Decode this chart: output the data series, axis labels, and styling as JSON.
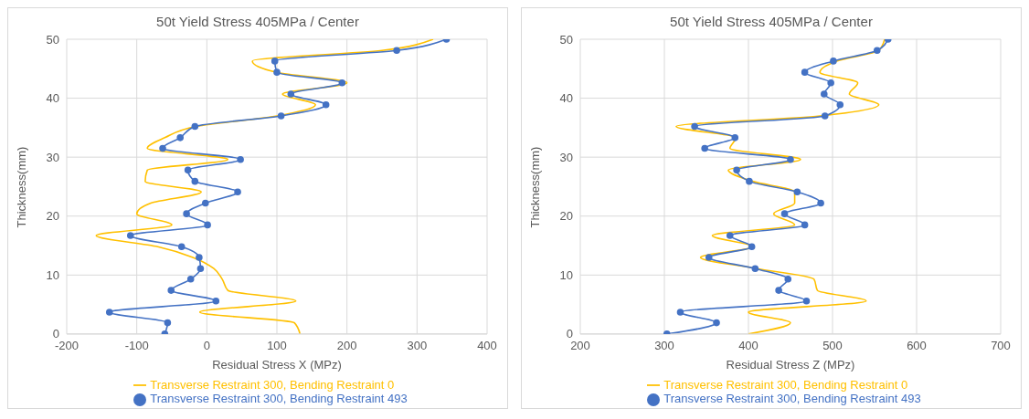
{
  "chart_data": [
    {
      "type": "line",
      "title": "50t Yield Stress 405MPa /  Center",
      "xlabel": "Residual Stress X (MPz)",
      "ylabel": "Thickness(mm)",
      "xlim": [
        -200,
        400
      ],
      "xticks": [
        -200,
        -100,
        0,
        100,
        200,
        300,
        400
      ],
      "ylim": [
        0,
        50
      ],
      "yticks": [
        0,
        10,
        20,
        30,
        40,
        50
      ],
      "grid": true,
      "legend": "bottom",
      "series": [
        {
          "name": "Transverse Restraint 300, Bending Restraint 0",
          "color": "#ffc000",
          "marker": "none",
          "x": [
            133,
            125,
            -10,
            127,
            30,
            22,
            10,
            -20,
            -70,
            -158,
            -50,
            -100,
            -80,
            -8,
            -88,
            -85,
            30,
            -85,
            -60,
            -15,
            100,
            155,
            108,
            200,
            100,
            65,
            250,
            323
          ],
          "values": [
            0,
            1.9,
            3.7,
            5.6,
            7.4,
            9.3,
            11.1,
            13,
            14.8,
            16.7,
            18.5,
            20.4,
            22.2,
            24.1,
            25.9,
            27.8,
            29.6,
            31.5,
            33.3,
            35.2,
            37,
            38.9,
            40.7,
            42.6,
            44.4,
            46.3,
            48.1,
            50
          ]
        },
        {
          "name": "Transverse Restraint 300, Bending Restraint 493",
          "color": "#4472c4",
          "marker": "circle",
          "x": [
            -60,
            -56,
            -139,
            13,
            -51,
            -23,
            -9,
            -11,
            -36,
            -109,
            1,
            -29,
            -2,
            44,
            -17,
            -27,
            48,
            -63,
            -38,
            -17,
            106,
            170,
            120,
            193,
            100,
            97,
            271,
            342
          ],
          "values": [
            0,
            1.9,
            3.7,
            5.6,
            7.4,
            9.3,
            11.1,
            13,
            14.8,
            16.7,
            18.5,
            20.4,
            22.2,
            24.1,
            25.9,
            27.8,
            29.6,
            31.5,
            33.3,
            35.2,
            37,
            38.9,
            40.7,
            42.6,
            44.4,
            46.3,
            48.1,
            50
          ]
        }
      ]
    },
    {
      "type": "line",
      "title": "50t Yield Stress 405MPa /  Center",
      "xlabel": "Residual Stress Z (MPz)",
      "ylabel": "Thickness(mm)",
      "xlim": [
        200,
        700
      ],
      "xticks": [
        200,
        300,
        400,
        500,
        600,
        700
      ],
      "ylim": [
        0,
        50
      ],
      "yticks": [
        0,
        10,
        20,
        30,
        40,
        50
      ],
      "grid": true,
      "legend": "bottom",
      "series": [
        {
          "name": "Transverse Restraint 300, Bending Restraint 0",
          "color": "#ffc000",
          "marker": "none",
          "x": [
            400,
            450,
            400,
            540,
            482,
            478,
            410,
            343,
            405,
            357,
            455,
            430,
            455,
            455,
            405,
            376,
            462,
            378,
            385,
            314,
            485,
            555,
            520,
            530,
            485,
            505,
            555,
            562
          ],
          "values": [
            0,
            1.9,
            3.7,
            5.6,
            7.4,
            9.3,
            11.1,
            13,
            14.8,
            16.7,
            18.5,
            20.4,
            22.2,
            24.1,
            25.9,
            27.8,
            29.6,
            31.5,
            33.3,
            35.2,
            37,
            38.9,
            40.7,
            42.6,
            44.4,
            46.3,
            48.1,
            50
          ]
        },
        {
          "name": "Transverse Restraint 300, Bending Restraint 493",
          "color": "#4472c4",
          "marker": "circle",
          "x": [
            303,
            362,
            319,
            469,
            436,
            447,
            408,
            353,
            404,
            378,
            467,
            443,
            486,
            458,
            401,
            386,
            450,
            348,
            384,
            336,
            491,
            509,
            490,
            498,
            467,
            501,
            553,
            566
          ],
          "values": [
            0,
            1.9,
            3.7,
            5.6,
            7.4,
            9.3,
            11.1,
            13,
            14.8,
            16.7,
            18.5,
            20.4,
            22.2,
            24.1,
            25.9,
            27.8,
            29.6,
            31.5,
            33.3,
            35.2,
            37,
            38.9,
            40.7,
            42.6,
            44.4,
            46.3,
            48.1,
            50
          ]
        }
      ]
    }
  ]
}
